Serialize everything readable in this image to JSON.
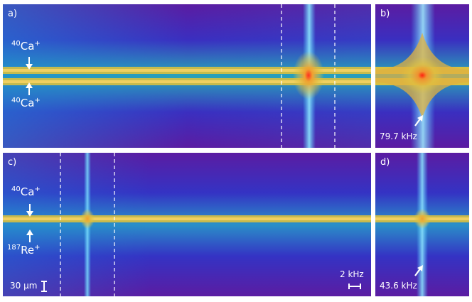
{
  "panels": {
    "a": {
      "label": "a)"
    },
    "b": {
      "label": "b)",
      "frequency": "79.7 kHz"
    },
    "c": {
      "label": "c)",
      "scale_space": "30 μm",
      "scale_freq": "2 kHz"
    },
    "d": {
      "label": "d)",
      "frequency": "43.6 kHz"
    }
  },
  "ions": {
    "a_top_mass": "40",
    "a_top_name": "Ca",
    "a_top_charge": "+",
    "a_bot_mass": "40",
    "a_bot_name": "Ca",
    "a_bot_charge": "+",
    "c_top_mass": "40",
    "c_top_name": "Ca",
    "c_top_charge": "+",
    "c_bot_mass": "187",
    "c_bot_name": "Re",
    "c_bot_charge": "+"
  },
  "colors": {
    "background_top": "#5a1aa0",
    "background_mid": "#1f6fd0",
    "line": "#e0c040",
    "peak": "#e02020"
  }
}
